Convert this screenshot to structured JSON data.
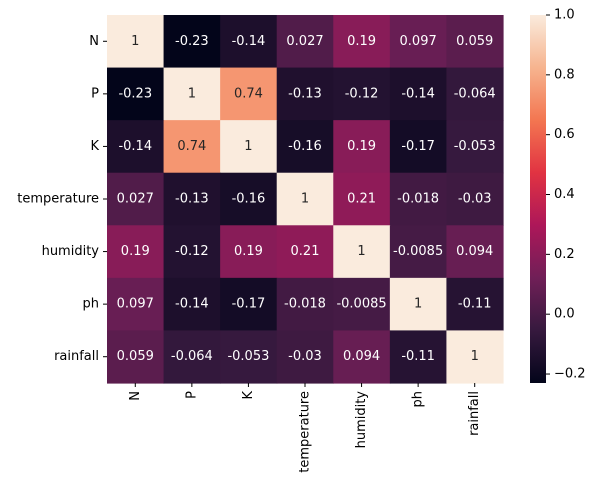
{
  "chart_data": {
    "type": "heatmap",
    "title": "",
    "xlabel": "",
    "ylabel": "",
    "rows": [
      "N",
      "P",
      "K",
      "temperature",
      "humidity",
      "ph",
      "rainfall"
    ],
    "columns": [
      "N",
      "P",
      "K",
      "temperature",
      "humidity",
      "ph",
      "rainfall"
    ],
    "values": [
      [
        1,
        -0.23,
        -0.14,
        0.027,
        0.19,
        0.097,
        0.059
      ],
      [
        -0.23,
        1,
        0.74,
        -0.13,
        -0.12,
        -0.14,
        -0.064
      ],
      [
        -0.14,
        0.74,
        1,
        -0.16,
        0.19,
        -0.17,
        -0.053
      ],
      [
        0.027,
        -0.13,
        -0.16,
        1,
        0.21,
        -0.018,
        -0.03
      ],
      [
        0.19,
        -0.12,
        0.19,
        0.21,
        1,
        -0.0085,
        0.094
      ],
      [
        0.097,
        -0.14,
        -0.17,
        -0.018,
        -0.0085,
        1,
        -0.11
      ],
      [
        0.059,
        -0.064,
        -0.053,
        -0.03,
        0.094,
        -0.11,
        1
      ]
    ],
    "cell_labels": [
      [
        "1",
        "-0.23",
        "-0.14",
        "0.027",
        "0.19",
        "0.097",
        "0.059"
      ],
      [
        "-0.23",
        "1",
        "0.74",
        "-0.13",
        "-0.12",
        "-0.14",
        "-0.064"
      ],
      [
        "-0.14",
        "0.74",
        "1",
        "-0.16",
        "0.19",
        "-0.17",
        "-0.053"
      ],
      [
        "0.027",
        "-0.13",
        "-0.16",
        "1",
        "0.21",
        "-0.018",
        "-0.03"
      ],
      [
        "0.19",
        "-0.12",
        "0.19",
        "0.21",
        "1",
        "-0.0085",
        "0.094"
      ],
      [
        "0.097",
        "-0.14",
        "-0.17",
        "-0.018",
        "-0.0085",
        "1",
        "-0.11"
      ],
      [
        "0.059",
        "-0.064",
        "-0.053",
        "-0.03",
        "0.094",
        "-0.11",
        "1"
      ]
    ],
    "colorbar": {
      "colormap": "rocket",
      "vmin": -0.23,
      "vmax": 1,
      "ticks": [
        -0.2,
        0.0,
        0.2,
        0.4,
        0.6,
        0.8,
        1.0
      ],
      "tick_labels": [
        "−0.2",
        "0.0",
        "0.2",
        "0.4",
        "0.6",
        "0.8",
        "1.0"
      ]
    }
  },
  "colors": {
    "colormap_stops": [
      "#03051a",
      "#36193e",
      "#701f57",
      "#ad1759",
      "#e13342",
      "#f37651",
      "#f6b48f",
      "#faebdd"
    ],
    "dark_text": "#262626",
    "light_text": "#ffffff"
  }
}
